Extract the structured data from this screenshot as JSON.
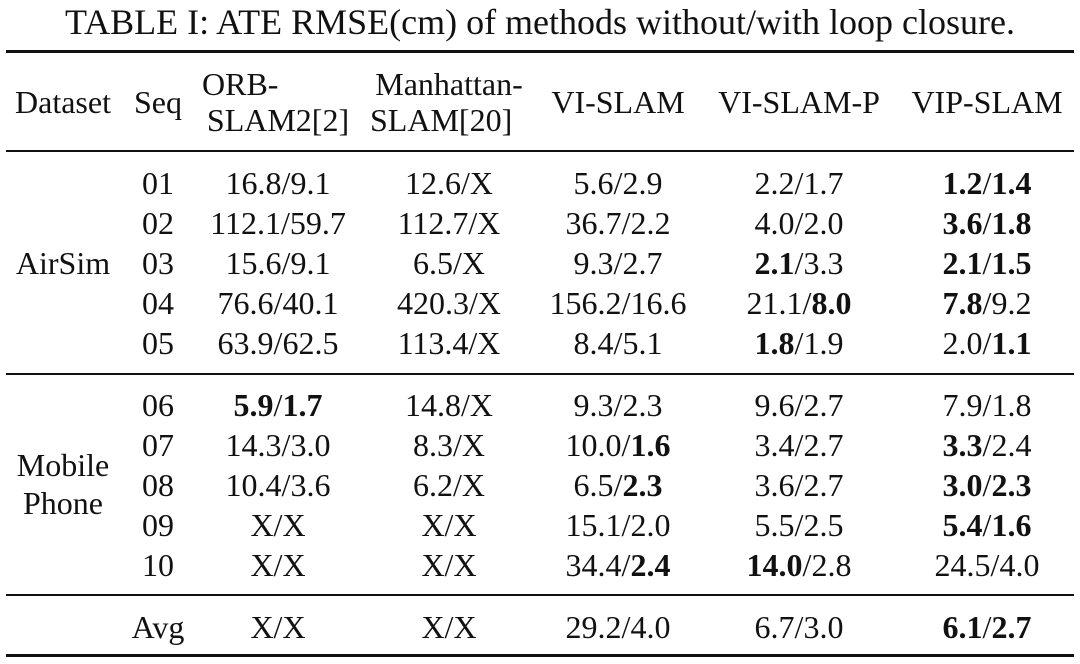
{
  "caption": "TABLE I: ATE RMSE(cm) of methods without/with loop closure.",
  "headers": {
    "dataset": "Dataset",
    "seq": "Seq",
    "orb_line1": "ORB-",
    "orb_line2": "SLAM2[2]",
    "man_line1": "Manhattan-",
    "man_line2": "SLAM[20]",
    "vi": "VI-SLAM",
    "vip_p": "VI-SLAM-P",
    "vip": "VIP-SLAM"
  },
  "groups": [
    {
      "name": "AirSim",
      "rows": [
        {
          "seq": "01",
          "cells": [
            {
              "a": "16.8",
              "ab": false,
              "b": "9.1",
              "bb": false
            },
            {
              "a": "12.6",
              "ab": false,
              "b": "X",
              "bb": false
            },
            {
              "a": "5.6",
              "ab": false,
              "b": "2.9",
              "bb": false
            },
            {
              "a": "2.2",
              "ab": false,
              "b": "1.7",
              "bb": false
            },
            {
              "a": "1.2",
              "ab": true,
              "b": "1.4",
              "bb": true
            }
          ]
        },
        {
          "seq": "02",
          "cells": [
            {
              "a": "112.1",
              "ab": false,
              "b": "59.7",
              "bb": false
            },
            {
              "a": "112.7",
              "ab": false,
              "b": "X",
              "bb": false
            },
            {
              "a": "36.7",
              "ab": false,
              "b": "2.2",
              "bb": false
            },
            {
              "a": "4.0",
              "ab": false,
              "b": "2.0",
              "bb": false
            },
            {
              "a": "3.6",
              "ab": true,
              "b": "1.8",
              "bb": true
            }
          ]
        },
        {
          "seq": "03",
          "cells": [
            {
              "a": "15.6",
              "ab": false,
              "b": "9.1",
              "bb": false
            },
            {
              "a": "6.5",
              "ab": false,
              "b": "X",
              "bb": false
            },
            {
              "a": "9.3",
              "ab": false,
              "b": "2.7",
              "bb": false
            },
            {
              "a": "2.1",
              "ab": true,
              "b": "3.3",
              "bb": false
            },
            {
              "a": "2.1",
              "ab": true,
              "b": "1.5",
              "bb": true
            }
          ]
        },
        {
          "seq": "04",
          "cells": [
            {
              "a": "76.6",
              "ab": false,
              "b": "40.1",
              "bb": false
            },
            {
              "a": "420.3",
              "ab": false,
              "b": "X",
              "bb": false
            },
            {
              "a": "156.2",
              "ab": false,
              "b": "16.6",
              "bb": false
            },
            {
              "a": "21.1",
              "ab": false,
              "b": "8.0",
              "bb": true
            },
            {
              "a": "7.8",
              "ab": true,
              "b": "9.2",
              "bb": false
            }
          ]
        },
        {
          "seq": "05",
          "cells": [
            {
              "a": "63.9",
              "ab": false,
              "b": "62.5",
              "bb": false
            },
            {
              "a": "113.4",
              "ab": false,
              "b": "X",
              "bb": false
            },
            {
              "a": "8.4",
              "ab": false,
              "b": "5.1",
              "bb": false
            },
            {
              "a": "1.8",
              "ab": true,
              "b": "1.9",
              "bb": false
            },
            {
              "a": "2.0",
              "ab": false,
              "b": "1.1",
              "bb": true
            }
          ]
        }
      ]
    },
    {
      "name": "Mobile Phone",
      "name_line1": "Mobile",
      "name_line2": "Phone",
      "rows": [
        {
          "seq": "06",
          "cells": [
            {
              "a": "5.9",
              "ab": true,
              "b": "1.7",
              "bb": true
            },
            {
              "a": "14.8",
              "ab": false,
              "b": "X",
              "bb": false
            },
            {
              "a": "9.3",
              "ab": false,
              "b": "2.3",
              "bb": false
            },
            {
              "a": "9.6",
              "ab": false,
              "b": "2.7",
              "bb": false
            },
            {
              "a": "7.9",
              "ab": false,
              "b": "1.8",
              "bb": false
            }
          ]
        },
        {
          "seq": "07",
          "cells": [
            {
              "a": "14.3",
              "ab": false,
              "b": "3.0",
              "bb": false
            },
            {
              "a": "8.3",
              "ab": false,
              "b": "X",
              "bb": false
            },
            {
              "a": "10.0",
              "ab": false,
              "b": "1.6",
              "bb": true
            },
            {
              "a": "3.4",
              "ab": false,
              "b": "2.7",
              "bb": false
            },
            {
              "a": "3.3",
              "ab": true,
              "b": "2.4",
              "bb": false
            }
          ]
        },
        {
          "seq": "08",
          "cells": [
            {
              "a": "10.4",
              "ab": false,
              "b": "3.6",
              "bb": false
            },
            {
              "a": "6.2",
              "ab": false,
              "b": "X",
              "bb": false
            },
            {
              "a": "6.5",
              "ab": false,
              "b": "2.3",
              "bb": true
            },
            {
              "a": "3.6",
              "ab": false,
              "b": "2.7",
              "bb": false
            },
            {
              "a": "3.0",
              "ab": true,
              "b": "2.3",
              "bb": true
            }
          ]
        },
        {
          "seq": "09",
          "cells": [
            {
              "a": "X",
              "ab": false,
              "b": "X",
              "bb": false
            },
            {
              "a": "X",
              "ab": false,
              "b": "X",
              "bb": false
            },
            {
              "a": "15.1",
              "ab": false,
              "b": "2.0",
              "bb": false
            },
            {
              "a": "5.5",
              "ab": false,
              "b": "2.5",
              "bb": false
            },
            {
              "a": "5.4",
              "ab": true,
              "b": "1.6",
              "bb": true
            }
          ]
        },
        {
          "seq": "10",
          "cells": [
            {
              "a": "X",
              "ab": false,
              "b": "X",
              "bb": false
            },
            {
              "a": "X",
              "ab": false,
              "b": "X",
              "bb": false
            },
            {
              "a": "34.4",
              "ab": false,
              "b": "2.4",
              "bb": true
            },
            {
              "a": "14.0",
              "ab": true,
              "b": "2.8",
              "bb": false
            },
            {
              "a": "24.5",
              "ab": false,
              "b": "4.0",
              "bb": false
            }
          ]
        }
      ]
    }
  ],
  "avg": {
    "label": "Avg",
    "cells": [
      {
        "a": "X",
        "ab": false,
        "b": "X",
        "bb": false
      },
      {
        "a": "X",
        "ab": false,
        "b": "X",
        "bb": false
      },
      {
        "a": "29.2",
        "ab": false,
        "b": "4.0",
        "bb": false
      },
      {
        "a": "6.7",
        "ab": false,
        "b": "3.0",
        "bb": false
      },
      {
        "a": "6.1",
        "ab": true,
        "b": "2.7",
        "bb": true
      }
    ]
  }
}
